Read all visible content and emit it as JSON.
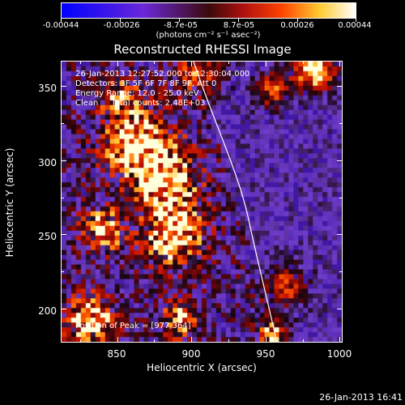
{
  "colorbar": {
    "tick_labels": [
      "-0.00044",
      "-0.00026",
      "-8.7e-05",
      "8.7e-05",
      "0.00026",
      "0.00044"
    ],
    "unit": "(photons cm⁻² s⁻¹ asec⁻²)"
  },
  "chart_data": {
    "type": "heatmap",
    "title": "Reconstructed RHESSI Image",
    "xlabel": "Heliocentric X (arcsec)",
    "ylabel": "Heliocentric Y (arcsec)",
    "x_ticks": [
      850,
      900,
      950,
      1000
    ],
    "y_ticks": [
      200,
      250,
      300,
      350
    ],
    "xlim": [
      812,
      1002
    ],
    "ylim": [
      177,
      367
    ],
    "zlim": [
      -0.00044,
      0.00044
    ],
    "annotations": [
      "26-Jan-2013 12:27:52.000 to 12:30:04.000",
      "Detectors: 3F 5F 6F 7F 8F 9F, Att 0",
      "Energy Range: 12.0 - 25.0 keV",
      "Clean     Total counts: 2.48E+03"
    ],
    "peak_label": "Position of Peak = [977,364]",
    "peak": [
      977,
      364
    ]
  },
  "footer": {
    "timestamp": "26-Jan-2013 16:41"
  }
}
